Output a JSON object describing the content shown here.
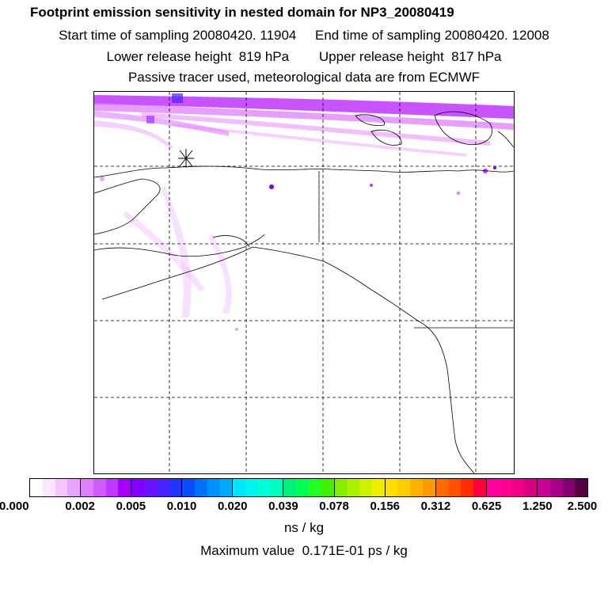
{
  "header": {
    "title": "Footprint emission sensitivity in nested domain for NP3_20080419",
    "line2": "Start time of sampling 20080420. 11904     End time of sampling 20080420. 12008",
    "line3": "Lower release height  819 hPa        Upper release height  817 hPa",
    "line4": "Passive tracer used, meteorological data are from ECMWF"
  },
  "colorbar": {
    "ticks": [
      "0.000",
      "0.002",
      "0.005",
      "0.010",
      "0.020",
      "0.039",
      "0.078",
      "0.156",
      "0.312",
      "0.625",
      "1.250",
      "2.500"
    ],
    "segments": [
      [
        "#ffffff",
        "#fbe6ff",
        "#f3c6ff",
        "#e9a4ff"
      ],
      [
        "#dd7fff",
        "#d05cff",
        "#c035ff",
        "#a800ff"
      ],
      [
        "#8000ff",
        "#6a12ff",
        "#4a22ff",
        "#2233ff"
      ],
      [
        "#0a4cff",
        "#0070ff",
        "#0090ff",
        "#00aaff"
      ],
      [
        "#00e6ff",
        "#00f4ee",
        "#00ffd8",
        "#00ffbf"
      ],
      [
        "#00f07a",
        "#00ff55",
        "#22ff22",
        "#44ee00"
      ],
      [
        "#88ee00",
        "#aaf000",
        "#ccf200",
        "#eeee00"
      ],
      [
        "#ffdd00",
        "#ffcc00",
        "#ffb300",
        "#ff9900"
      ],
      [
        "#ff6a00",
        "#ff5000",
        "#ff2d00",
        "#ff0040"
      ],
      [
        "#ff00a0",
        "#ff0090",
        "#f00088",
        "#d60080"
      ],
      [
        "#c80094",
        "#a80088",
        "#82006e",
        "#520042"
      ]
    ],
    "unit": "ns / kg"
  },
  "footer": {
    "max_value": "Maximum value  0.171E-01 ps / kg"
  },
  "map": {
    "release_marker": "asterisk-marker",
    "plume_colors": [
      "#f0b8ff",
      "#dd7fff",
      "#c035ff",
      "#8000ff",
      "#2233ff"
    ]
  }
}
